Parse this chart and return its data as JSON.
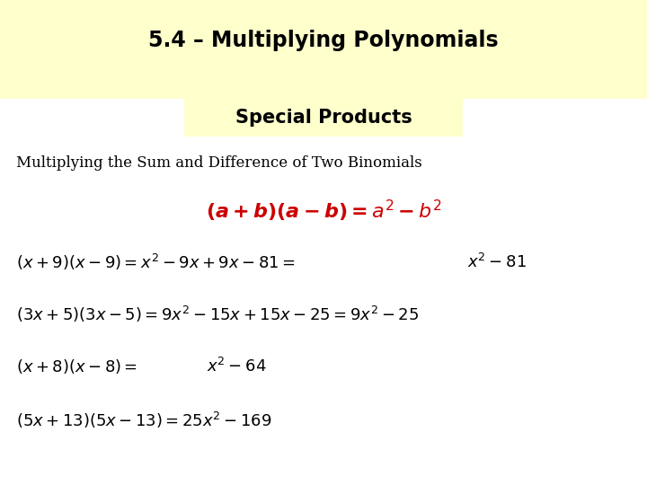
{
  "bg_top_color": "#ffffcc",
  "bg_bottom_color": "#ffffff",
  "subtitle_box_color": "#ffffcc",
  "title": "5.4 – Multiplying Polynomials",
  "subtitle": "Special Products",
  "title_fontsize": 17,
  "subtitle_fontsize": 15,
  "main_fontsize": 12,
  "formula_fontsize": 16,
  "example_fontsize": 13,
  "text_color": "#000000",
  "red_color": "#cc0000"
}
